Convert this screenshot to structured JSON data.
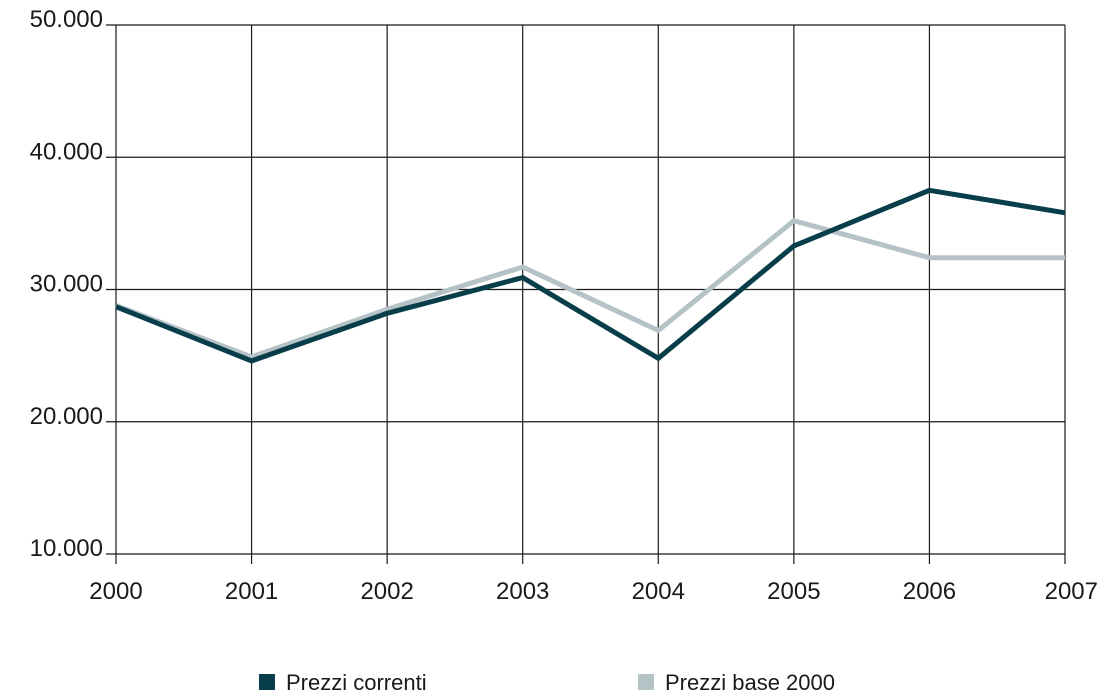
{
  "chart_data": {
    "type": "line",
    "title": "",
    "xlabel": "",
    "ylabel": "",
    "categories": [
      "2000",
      "2001",
      "2002",
      "2003",
      "2004",
      "2005",
      "2006",
      "2007"
    ],
    "y_ticks": [
      10000,
      20000,
      30000,
      40000,
      50000
    ],
    "y_tick_labels": [
      "10.000",
      "20.000",
      "30.000",
      "40.000",
      "50.000"
    ],
    "ylim": [
      10000,
      50000
    ],
    "grid": true,
    "legend_position": "bottom",
    "series": [
      {
        "name": "Prezzi correnti",
        "color": "#073e4a",
        "values": [
          28700,
          24600,
          28200,
          30900,
          24800,
          33300,
          37500,
          35800
        ]
      },
      {
        "name": "Prezzi base 2000",
        "color": "#b5c2c6",
        "values": [
          28800,
          24900,
          28500,
          31700,
          26900,
          35200,
          32400,
          32400
        ]
      }
    ]
  }
}
